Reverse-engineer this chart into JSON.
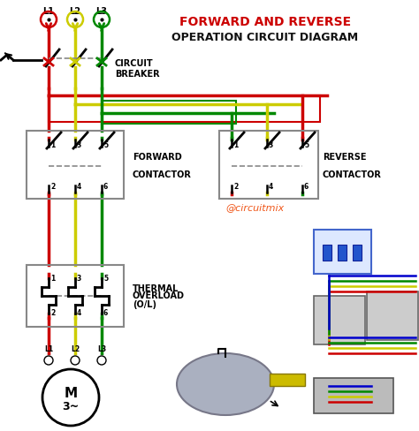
{
  "title_line1": "FORWARD AND REVERSE",
  "title_line2": "OPERATION CIRCUIT DIAGRAM",
  "title_color1": "#cc0000",
  "title_color2": "#111111",
  "bg_color": "#ffffff",
  "wire_red": "#cc0000",
  "wire_yellow": "#cccc00",
  "wire_green": "#008800",
  "wire_blue": "#0000cc",
  "L_labels": [
    "L1",
    "L2",
    "L3"
  ],
  "forward_label1": "FORWARD",
  "forward_label2": "CONTACTOR",
  "reverse_label1": "REVERSE",
  "reverse_label2": "CONTACTOR",
  "cb_label1": "CIRCUIT",
  "cb_label2": "BREAKER",
  "thermal_label1": "THERMAL",
  "thermal_label2": "OVERLOAD",
  "thermal_label3": "(O/L)",
  "watermark": "@circuitmix",
  "motor_label": "M",
  "motor_label2": "3~"
}
